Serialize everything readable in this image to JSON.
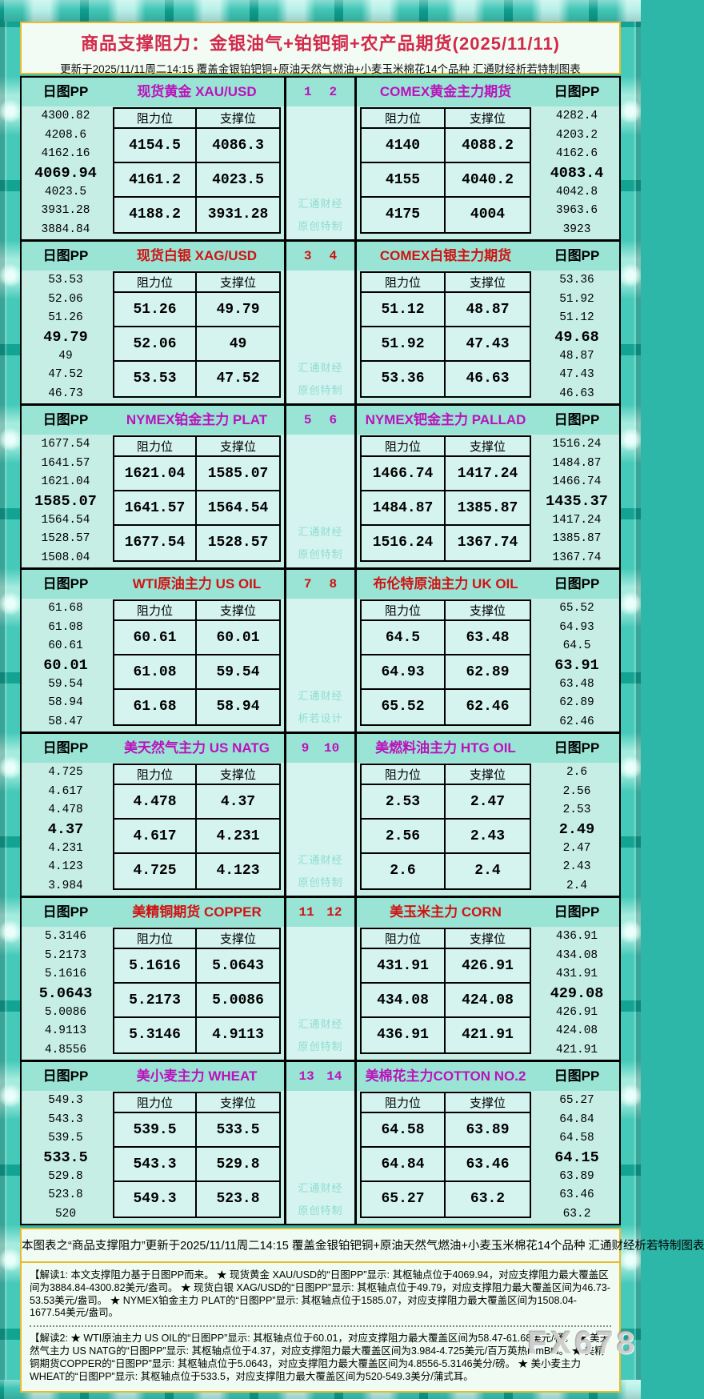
{
  "chart_data": {
    "type": "table",
    "title": "商品支撑阻力：金银油气+铂钯铜+农产品期货(2025/11/11)",
    "subtitle": "更新于2025/11/11周二14:15 覆盖金银铂钯铜+原油天然气燃油+小麦玉米棉花14个品种 汇通财经析若特制图表",
    "pp_label": "日图PP",
    "col_resistance": "阻力位",
    "col_support": "支撑位",
    "colors": {
      "accent_magenta": "#bb12bb",
      "accent_red": "#d01212",
      "title_red": "#d2294a",
      "band": "#99e4d5",
      "panel_body": "#c6eee5",
      "cell_bg": "#d5f4ef",
      "gold_border": "#e7bb2e"
    },
    "sections": [
      {
        "left_title": "现货黄金 XAU/USD",
        "right_title": "COMEX黄金主力期货",
        "nums": [
          "1",
          "2"
        ],
        "accent": "magenta",
        "watermark": [
          "汇通财经",
          "原创特制"
        ],
        "left_pp": [
          "4300.82",
          "4208.6",
          "4162.16",
          "4069.94",
          "4023.5",
          "3931.28",
          "3884.84"
        ],
        "right_pp": [
          "4282.4",
          "4203.2",
          "4162.6",
          "4083.4",
          "4042.8",
          "3963.6",
          "3923"
        ],
        "left_rows": [
          [
            "4154.5",
            "4086.3"
          ],
          [
            "4161.2",
            "4023.5"
          ],
          [
            "4188.2",
            "3931.28"
          ]
        ],
        "right_rows": [
          [
            "4140",
            "4088.2"
          ],
          [
            "4155",
            "4040.2"
          ],
          [
            "4175",
            "4004"
          ]
        ]
      },
      {
        "left_title": "现货白银 XAG/USD",
        "right_title": "COMEX白银主力期货",
        "nums": [
          "3",
          "4"
        ],
        "accent": "red",
        "watermark": [
          "汇通财经",
          "原创特制"
        ],
        "left_pp": [
          "53.53",
          "52.06",
          "51.26",
          "49.79",
          "49",
          "47.52",
          "46.73"
        ],
        "right_pp": [
          "53.36",
          "51.92",
          "51.12",
          "49.68",
          "48.87",
          "47.43",
          "46.63"
        ],
        "left_rows": [
          [
            "51.26",
            "49.79"
          ],
          [
            "52.06",
            "49"
          ],
          [
            "53.53",
            "47.52"
          ]
        ],
        "right_rows": [
          [
            "51.12",
            "48.87"
          ],
          [
            "51.92",
            "47.43"
          ],
          [
            "53.36",
            "46.63"
          ]
        ]
      },
      {
        "left_title": "NYMEX铂金主力 PLAT",
        "right_title": "NYMEX钯金主力 PALLAD",
        "nums": [
          "5",
          "6"
        ],
        "accent": "magenta",
        "watermark": [
          "汇通财经",
          "原创特制"
        ],
        "left_pp": [
          "1677.54",
          "1641.57",
          "1621.04",
          "1585.07",
          "1564.54",
          "1528.57",
          "1508.04"
        ],
        "right_pp": [
          "1516.24",
          "1484.87",
          "1466.74",
          "1435.37",
          "1417.24",
          "1385.87",
          "1367.74"
        ],
        "left_rows": [
          [
            "1621.04",
            "1585.07"
          ],
          [
            "1641.57",
            "1564.54"
          ],
          [
            "1677.54",
            "1528.57"
          ]
        ],
        "right_rows": [
          [
            "1466.74",
            "1417.24"
          ],
          [
            "1484.87",
            "1385.87"
          ],
          [
            "1516.24",
            "1367.74"
          ]
        ]
      },
      {
        "left_title": "WTI原油主力 US OIL",
        "right_title": "布伦特原油主力 UK OIL",
        "nums": [
          "7",
          "8"
        ],
        "accent": "red",
        "watermark": [
          "汇通财经",
          "析若设计"
        ],
        "left_pp": [
          "61.68",
          "61.08",
          "60.61",
          "60.01",
          "59.54",
          "58.94",
          "58.47"
        ],
        "right_pp": [
          "65.52",
          "64.93",
          "64.5",
          "63.91",
          "63.48",
          "62.89",
          "62.46"
        ],
        "left_rows": [
          [
            "60.61",
            "60.01"
          ],
          [
            "61.08",
            "59.54"
          ],
          [
            "61.68",
            "58.94"
          ]
        ],
        "right_rows": [
          [
            "64.5",
            "63.48"
          ],
          [
            "64.93",
            "62.89"
          ],
          [
            "65.52",
            "62.46"
          ]
        ]
      },
      {
        "left_title": "美天然气主力 US NATG",
        "right_title": "美燃料油主力 HTG OIL",
        "nums": [
          "9",
          "10"
        ],
        "accent": "magenta",
        "watermark": [
          "汇通财经",
          "原创特制"
        ],
        "left_pp": [
          "4.725",
          "4.617",
          "4.478",
          "4.37",
          "4.231",
          "4.123",
          "3.984"
        ],
        "right_pp": [
          "2.6",
          "2.56",
          "2.53",
          "2.49",
          "2.47",
          "2.43",
          "2.4"
        ],
        "left_rows": [
          [
            "4.478",
            "4.37"
          ],
          [
            "4.617",
            "4.231"
          ],
          [
            "4.725",
            "4.123"
          ]
        ],
        "right_rows": [
          [
            "2.53",
            "2.47"
          ],
          [
            "2.56",
            "2.43"
          ],
          [
            "2.6",
            "2.4"
          ]
        ]
      },
      {
        "left_title": "美精铜期货 COPPER",
        "right_title": "美玉米主力 CORN",
        "nums": [
          "11",
          "12"
        ],
        "accent": "red",
        "watermark": [
          "汇通财经",
          "原创特制"
        ],
        "left_pp": [
          "5.3146",
          "5.2173",
          "5.1616",
          "5.0643",
          "5.0086",
          "4.9113",
          "4.8556"
        ],
        "right_pp": [
          "436.91",
          "434.08",
          "431.91",
          "429.08",
          "426.91",
          "424.08",
          "421.91"
        ],
        "left_rows": [
          [
            "5.1616",
            "5.0643"
          ],
          [
            "5.2173",
            "5.0086"
          ],
          [
            "5.3146",
            "4.9113"
          ]
        ],
        "right_rows": [
          [
            "431.91",
            "426.91"
          ],
          [
            "434.08",
            "424.08"
          ],
          [
            "436.91",
            "421.91"
          ]
        ]
      },
      {
        "left_title": "美小麦主力 WHEAT",
        "right_title": "美棉花主力COTTON NO.2",
        "nums": [
          "13",
          "14"
        ],
        "accent": "magenta",
        "watermark": [
          "汇通财经",
          "原创特制"
        ],
        "left_pp": [
          "549.3",
          "543.3",
          "539.5",
          "533.5",
          "529.8",
          "523.8",
          "520"
        ],
        "right_pp": [
          "65.27",
          "64.84",
          "64.58",
          "64.15",
          "63.89",
          "63.46",
          "63.2"
        ],
        "left_rows": [
          [
            "539.5",
            "533.5"
          ],
          [
            "543.3",
            "529.8"
          ],
          [
            "549.3",
            "523.8"
          ]
        ],
        "right_rows": [
          [
            "64.58",
            "63.89"
          ],
          [
            "64.84",
            "63.46"
          ],
          [
            "65.27",
            "63.2"
          ]
        ]
      }
    ],
    "footer_summary": "本图表之“商品支撑阻力”更新于2025/11/11周二14:15 覆盖金银铂钯铜+原油天然气燃油+小麦玉米棉花14个品种 汇通财经析若特制图表",
    "note1": "【解读1: 本文支撑阻力基于日图PP而来。 ★ 现货黄金 XAU/USD的“日图PP”显示: 其枢轴点位于4069.94，对应支撑阻力最大覆盖区间为3884.84-4300.82美元/盎司。 ★ 现货白银 XAG/USD的“日图PP”显示: 其枢轴点位于49.79，对应支撑阻力最大覆盖区间为46.73-53.53美元/盎司。 ★ NYMEX铂金主力 PLAT的“日图PP”显示: 其枢轴点位于1585.07，对应支撑阻力最大覆盖区间为1508.04-1677.54美元/盎司。",
    "note2": "【解读2: ★ WTI原油主力 US OIL的“日图PP”显示: 其枢轴点位于60.01，对应支撑阻力最大覆盖区间为58.47-61.68美元/桶。 ★ 美天然气主力 US NATG的“日图PP”显示: 其枢轴点位于4.37，对应支撑阻力最大覆盖区间为3.984-4.725美元/百万英热mmBtu。 ★ 美精铜期货COPPER的“日图PP”显示: 其枢轴点位于5.0643，对应支撑阻力最大覆盖区间为4.8556-5.3146美分/磅。 ★ 美小麦主力 WHEAT的“日图PP”显示: 其枢轴点位于533.5，对应支撑阻力最大覆盖区间为520-549.3美分/蒲式耳。",
    "site_watermark": "FX678"
  }
}
